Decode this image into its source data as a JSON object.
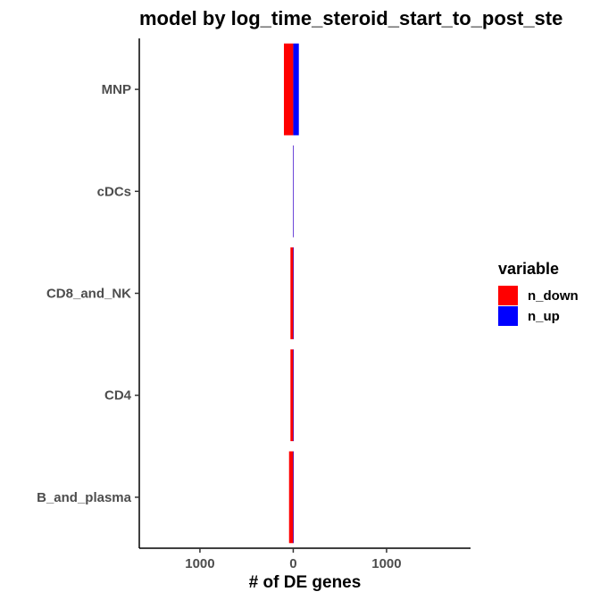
{
  "chart_data": {
    "type": "bar",
    "orientation": "horizontal",
    "stacked": true,
    "title": "model by log_time_steroid_start_to_post_ste",
    "xlabel": "# of DE genes",
    "ylabel": "",
    "categories": [
      "MNP",
      "cDCs",
      "CD8_and_NK",
      "CD4",
      "B_and_plasma"
    ],
    "x_tick_labels": [
      "1000",
      "0",
      "1000"
    ],
    "x_tick_values": [
      -1000,
      0,
      1000
    ],
    "xlim": [
      -1650,
      1900
    ],
    "series": [
      {
        "name": "n_down",
        "color": "#ff0000",
        "values": [
          100,
          1,
          30,
          30,
          45
        ]
      },
      {
        "name": "n_up",
        "color": "#0000ff",
        "values": [
          60,
          2,
          3,
          3,
          3
        ]
      }
    ],
    "legend": {
      "title": "variable",
      "position": "right",
      "entries": [
        {
          "label": "n_down",
          "color": "#ff0000"
        },
        {
          "label": "n_up",
          "color": "#0000ff"
        }
      ]
    },
    "grid": false
  }
}
